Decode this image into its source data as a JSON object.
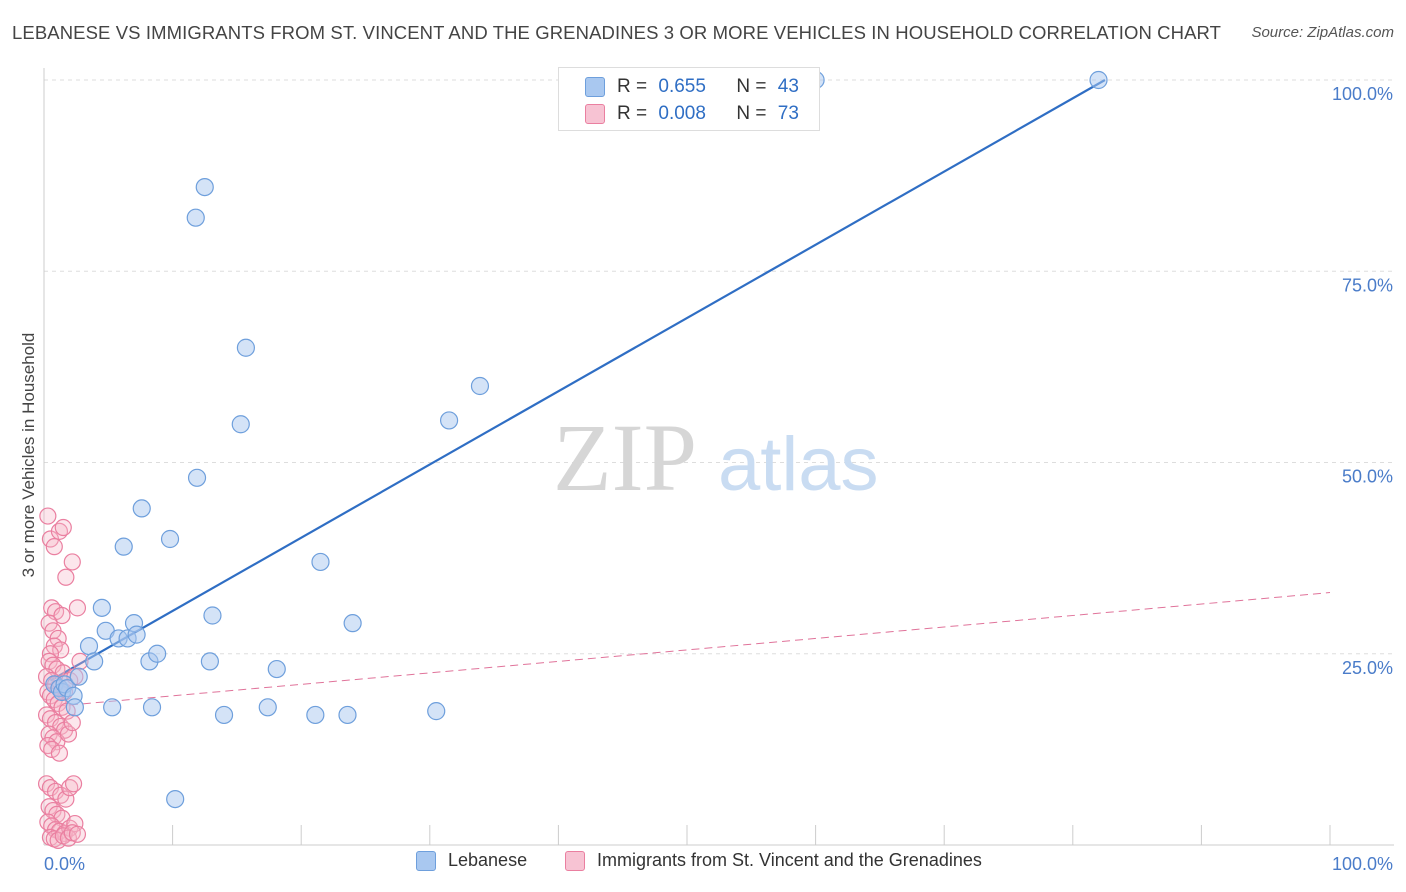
{
  "title": "LEBANESE VS IMMIGRANTS FROM ST. VINCENT AND THE GRENADINES 3 OR MORE VEHICLES IN HOUSEHOLD CORRELATION CHART",
  "source": "Source: ZipAtlas.com",
  "watermark": {
    "zip": "ZIP",
    "atlas": "atlas"
  },
  "legend": {
    "rows": [
      {
        "r_label": "R =",
        "r_value": "0.655",
        "n_label": "N =",
        "n_value": "43"
      },
      {
        "r_label": "R =",
        "r_value": "0.008",
        "n_label": "N =",
        "n_value": "73"
      }
    ]
  },
  "bottom_legend": [
    "Lebanese",
    "Immigrants from St. Vincent and the Grenadines"
  ],
  "colors": {
    "blue_fill": "#a9c8f0",
    "blue_stroke": "#6e9fdc",
    "blue_line": "#2f6ec4",
    "pink_fill": "#f7b6c9",
    "pink_stroke": "#ea7fa0",
    "pink_line": "#e0739a",
    "grid": "#dddddd",
    "tick": "#4a7cc9"
  },
  "chart_data": {
    "type": "scatter",
    "title": "LEBANESE VS IMMIGRANTS FROM ST. VINCENT AND THE GRENADINES 3 OR MORE VEHICLES IN HOUSEHOLD CORRELATION CHART",
    "xlabel": "",
    "ylabel": "3 or more Vehicles in Household",
    "xlim": [
      0,
      100
    ],
    "ylim": [
      0,
      100
    ],
    "x_tick_labels": [
      "0.0%",
      "100.0%"
    ],
    "y_ticks": [
      25,
      50,
      75,
      100
    ],
    "y_tick_labels": [
      "25.0%",
      "50.0%",
      "75.0%",
      "100.0%"
    ],
    "grid": true,
    "legend_position": "top-center",
    "series": [
      {
        "name": "Lebanese",
        "r": 0.655,
        "n": 43,
        "trend": {
          "x": [
            0.5,
            82.5
          ],
          "y": [
            21.5,
            100
          ]
        },
        "points": [
          [
            0.8,
            21.0
          ],
          [
            1.2,
            20.5
          ],
          [
            1.4,
            20.0
          ],
          [
            1.6,
            21.0
          ],
          [
            1.8,
            20.5
          ],
          [
            2.3,
            19.5
          ],
          [
            2.7,
            22.0
          ],
          [
            2.4,
            18.0
          ],
          [
            3.5,
            26.0
          ],
          [
            3.9,
            24.0
          ],
          [
            4.5,
            31.0
          ],
          [
            4.8,
            28.0
          ],
          [
            5.3,
            18.0
          ],
          [
            5.8,
            27.0
          ],
          [
            6.2,
            39.0
          ],
          [
            6.5,
            27.0
          ],
          [
            7.0,
            29.0
          ],
          [
            7.2,
            27.5
          ],
          [
            7.6,
            44.0
          ],
          [
            8.2,
            24.0
          ],
          [
            8.4,
            18.0
          ],
          [
            8.8,
            25.0
          ],
          [
            9.8,
            40.0
          ],
          [
            10.2,
            6.0
          ],
          [
            11.8,
            82.0
          ],
          [
            12.5,
            86.0
          ],
          [
            11.9,
            48.0
          ],
          [
            12.9,
            24.0
          ],
          [
            13.1,
            30.0
          ],
          [
            14.0,
            17.0
          ],
          [
            15.3,
            55.0
          ],
          [
            15.7,
            65.0
          ],
          [
            17.4,
            18.0
          ],
          [
            18.1,
            23.0
          ],
          [
            21.1,
            17.0
          ],
          [
            21.5,
            37.0
          ],
          [
            24.0,
            29.0
          ],
          [
            23.6,
            17.0
          ],
          [
            30.5,
            17.5
          ],
          [
            31.5,
            55.5
          ],
          [
            33.9,
            60.0
          ],
          [
            60.0,
            100.0
          ],
          [
            82.0,
            100.0
          ]
        ]
      },
      {
        "name": "Immigrants from St. Vincent and the Grenadines",
        "r": 0.008,
        "n": 73,
        "trend": {
          "x": [
            0,
            100
          ],
          "y": [
            18,
            33
          ]
        },
        "points": [
          [
            0.3,
            43.0
          ],
          [
            0.5,
            40.0
          ],
          [
            0.8,
            39.0
          ],
          [
            1.2,
            41.0
          ],
          [
            1.5,
            41.5
          ],
          [
            0.6,
            31.0
          ],
          [
            0.9,
            30.5
          ],
          [
            1.4,
            30.0
          ],
          [
            0.4,
            29.0
          ],
          [
            0.7,
            28.0
          ],
          [
            1.1,
            27.0
          ],
          [
            0.8,
            26.0
          ],
          [
            1.3,
            25.5
          ],
          [
            0.5,
            25.0
          ],
          [
            1.7,
            35.0
          ],
          [
            2.2,
            37.0
          ],
          [
            2.6,
            31.0
          ],
          [
            0.4,
            24.0
          ],
          [
            0.7,
            23.5
          ],
          [
            1.0,
            23.0
          ],
          [
            1.5,
            22.5
          ],
          [
            2.8,
            24.0
          ],
          [
            0.2,
            22.0
          ],
          [
            0.6,
            21.5
          ],
          [
            0.9,
            21.0
          ],
          [
            1.2,
            20.5
          ],
          [
            1.6,
            20.0
          ],
          [
            2.0,
            21.5
          ],
          [
            2.4,
            22.0
          ],
          [
            0.3,
            20.0
          ],
          [
            0.5,
            19.5
          ],
          [
            0.8,
            19.0
          ],
          [
            1.1,
            18.5
          ],
          [
            1.4,
            18.0
          ],
          [
            1.8,
            17.5
          ],
          [
            0.2,
            17.0
          ],
          [
            0.5,
            16.5
          ],
          [
            0.9,
            16.0
          ],
          [
            1.3,
            15.5
          ],
          [
            1.6,
            15.0
          ],
          [
            0.4,
            14.5
          ],
          [
            0.7,
            14.0
          ],
          [
            1.0,
            13.5
          ],
          [
            0.3,
            13.0
          ],
          [
            1.9,
            14.5
          ],
          [
            2.2,
            16.0
          ],
          [
            0.6,
            12.5
          ],
          [
            1.2,
            12.0
          ],
          [
            0.2,
            8.0
          ],
          [
            0.5,
            7.5
          ],
          [
            0.9,
            7.0
          ],
          [
            1.3,
            6.5
          ],
          [
            1.7,
            6.0
          ],
          [
            2.0,
            7.5
          ],
          [
            2.3,
            8.0
          ],
          [
            0.4,
            5.0
          ],
          [
            0.7,
            4.5
          ],
          [
            1.0,
            4.0
          ],
          [
            1.4,
            3.5
          ],
          [
            0.3,
            3.0
          ],
          [
            0.6,
            2.5
          ],
          [
            0.9,
            2.0
          ],
          [
            1.2,
            1.8
          ],
          [
            1.6,
            1.5
          ],
          [
            2.0,
            2.2
          ],
          [
            2.4,
            2.8
          ],
          [
            0.5,
            1.0
          ],
          [
            0.8,
            0.8
          ],
          [
            1.1,
            0.6
          ],
          [
            1.5,
            1.2
          ],
          [
            1.9,
            0.9
          ],
          [
            2.2,
            1.6
          ],
          [
            2.6,
            1.4
          ]
        ]
      }
    ]
  }
}
